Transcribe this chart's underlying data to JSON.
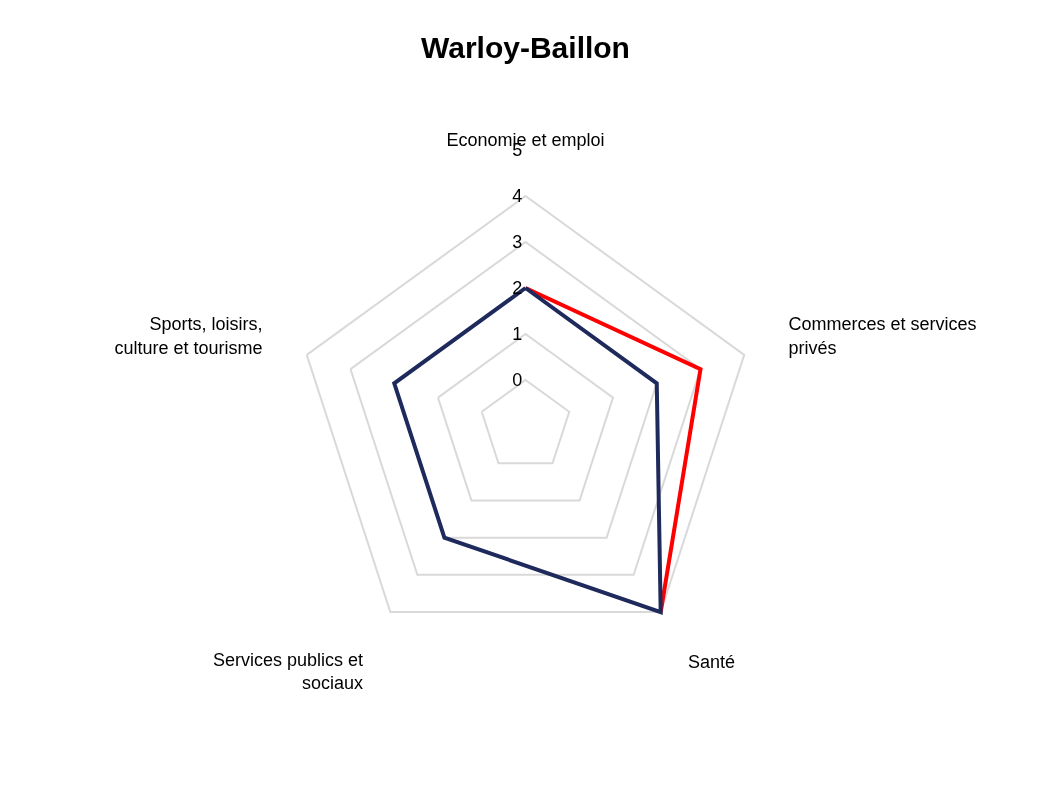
{
  "chart_data": {
    "type": "radar",
    "title": "Warloy-Baillon",
    "categories": [
      "Economie et emploi",
      "Commerces et services privés",
      "Santé",
      "Services publics et sociaux",
      "Sports, loisirs, culture et tourisme"
    ],
    "series": [
      {
        "color": "#ff0000",
        "values": [
          2,
          3,
          4,
          null,
          null
        ]
      },
      {
        "color": "#1f2a5c",
        "values": [
          2,
          2,
          4,
          2,
          2
        ]
      }
    ],
    "ylim": [
      -1,
      5
    ],
    "yticks": [
      0,
      1,
      2,
      3,
      4,
      5
    ],
    "grid": true,
    "marker": "none",
    "line_style": "solid"
  }
}
